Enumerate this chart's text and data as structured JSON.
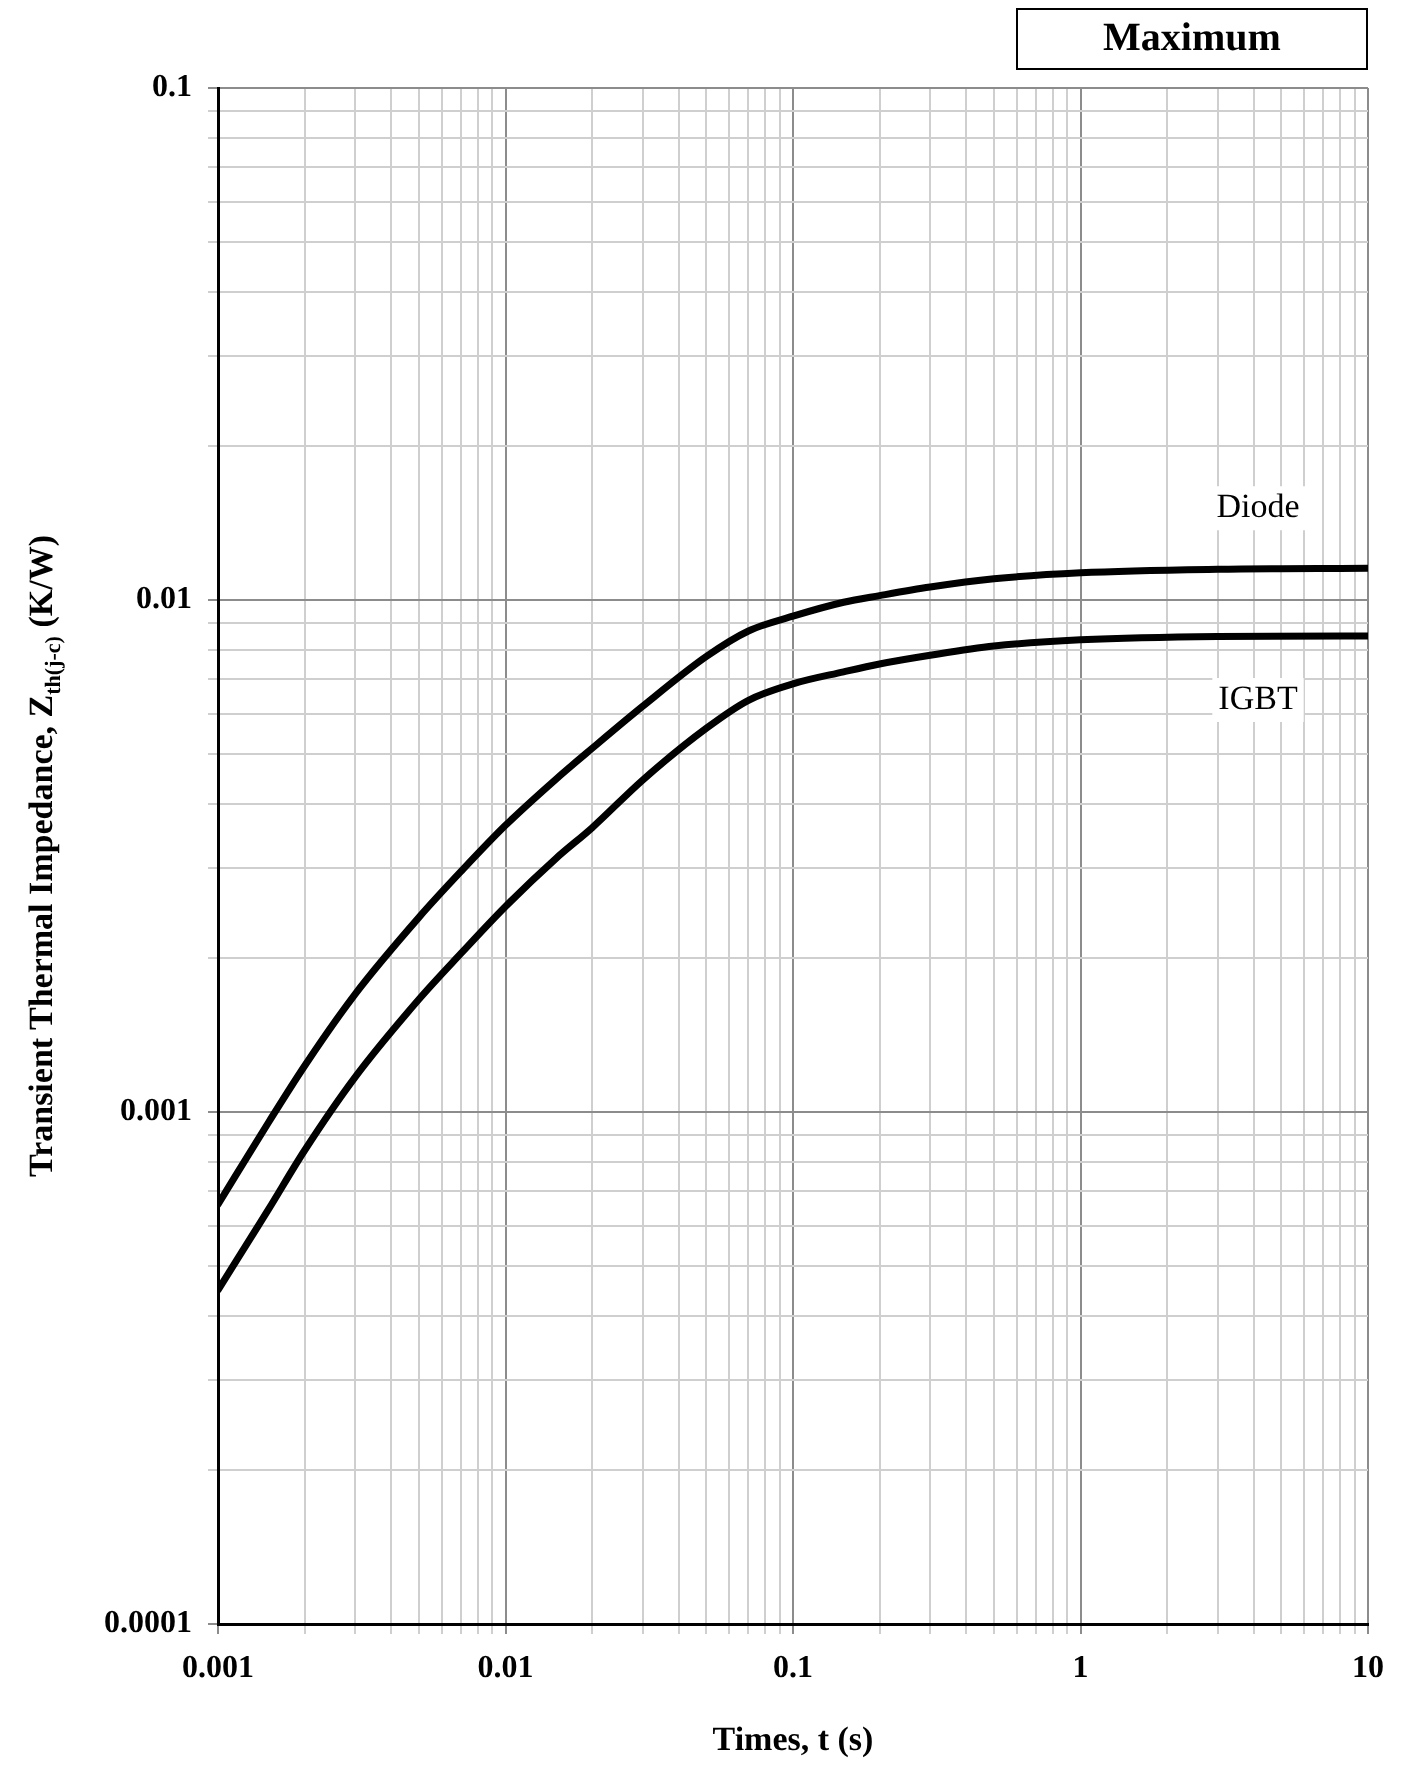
{
  "chart_data": {
    "type": "line",
    "xlabel": "Times, t (s)",
    "ylabel": "Transient Thermal Impedance, Z$_{th(j-c)}$ (K/W)",
    "log": "xy",
    "grid": true,
    "legend": false,
    "marker": "none",
    "line_style": "solid",
    "x": [
      0.001,
      0.0015,
      0.002,
      0.003,
      0.005,
      0.007,
      0.01,
      0.015,
      0.02,
      0.03,
      0.05,
      0.07,
      0.1,
      0.15,
      0.2,
      0.3,
      0.5,
      1,
      3,
      10
    ],
    "series": [
      {
        "name": "Diode",
        "color": "#000000",
        "values": [
          0.00066,
          0.000955,
          0.00123,
          0.0017,
          0.0024,
          0.00295,
          0.00363,
          0.00447,
          0.00513,
          0.0062,
          0.00776,
          0.0087,
          0.0093,
          0.0099,
          0.0102,
          0.0106,
          0.011,
          0.0113,
          0.01148,
          0.01153
        ]
      },
      {
        "name": "IGBT",
        "color": "#000000",
        "values": [
          0.000449,
          0.000646,
          0.000841,
          0.00117,
          0.00166,
          0.00204,
          0.00252,
          0.00313,
          0.00359,
          0.00445,
          0.00562,
          0.00637,
          0.00686,
          0.00724,
          0.0075,
          0.0078,
          0.00813,
          0.00836,
          0.00849,
          0.00851
        ]
      }
    ],
    "xlim": [
      0.001,
      10
    ],
    "ylim": [
      0.0001,
      0.1
    ],
    "xticks": [
      0.001,
      {
        "value": 0.002,
        "label": null
      },
      {
        "value": 0.003,
        "label": null
      },
      {
        "value": 0.004,
        "label": null
      },
      {
        "value": 0.005,
        "label": null
      },
      {
        "value": 0.006,
        "label": null
      },
      {
        "value": 0.007,
        "label": null
      },
      {
        "value": 0.008,
        "label": null
      },
      {
        "value": 0.009,
        "label": null
      },
      0.01,
      {
        "value": 0.02,
        "label": null
      },
      {
        "value": 0.03,
        "label": null
      },
      {
        "value": 0.04,
        "label": null
      },
      {
        "value": 0.05,
        "label": null
      },
      {
        "value": 0.06,
        "label": null
      },
      {
        "value": 0.07,
        "label": null
      },
      {
        "value": 0.08,
        "label": null
      },
      {
        "value": 0.09,
        "label": null
      },
      0.1,
      {
        "value": 0.2,
        "label": null
      },
      {
        "value": 0.3,
        "label": null
      },
      {
        "value": 0.4,
        "label": null
      },
      {
        "value": 0.5,
        "label": null
      },
      {
        "value": 0.6,
        "label": null
      },
      {
        "value": 0.7,
        "label": null
      },
      {
        "value": 0.8,
        "label": null
      },
      {
        "value": 0.9,
        "label": null
      },
      1,
      {
        "value": 2,
        "label": null
      },
      {
        "value": 3,
        "label": null
      },
      {
        "value": 4,
        "label": null
      },
      {
        "value": 5,
        "label": null
      },
      {
        "value": 6,
        "label": null
      },
      {
        "value": 7,
        "label": null
      },
      {
        "value": 8,
        "label": null
      },
      {
        "value": 9,
        "label": null
      },
      10
    ],
    "yticks": [
      0.0001,
      {
        "value": 0.0002,
        "label": null
      },
      {
        "value": 0.0003,
        "label": null
      },
      {
        "value": 0.0004,
        "label": null
      },
      {
        "value": 0.0005,
        "label": null
      },
      {
        "value": 0.0006,
        "label": null
      },
      {
        "value": 0.0007,
        "label": null
      },
      {
        "value": 0.0008,
        "label": null
      },
      {
        "value": 0.0009,
        "label": null
      },
      0.001,
      {
        "value": 0.002,
        "label": null
      },
      {
        "value": 0.003,
        "label": null
      },
      {
        "value": 0.004,
        "label": null
      },
      {
        "value": 0.005,
        "label": null
      },
      {
        "value": 0.006,
        "label": null
      },
      {
        "value": 0.007,
        "label": null
      },
      {
        "value": 0.008,
        "label": null
      },
      {
        "value": 0.009,
        "label": null
      },
      0.01,
      {
        "value": 0.02,
        "label": null
      },
      {
        "value": 0.03,
        "label": null
      },
      {
        "value": 0.04,
        "label": null
      },
      {
        "value": 0.05,
        "label": null
      },
      {
        "value": 0.06,
        "label": null
      },
      {
        "value": 0.07,
        "label": null
      },
      {
        "value": 0.08,
        "label": null
      },
      {
        "value": 0.09,
        "label": null
      },
      0.1
    ],
    "annotations": [
      "Maximum"
    ]
  }
}
